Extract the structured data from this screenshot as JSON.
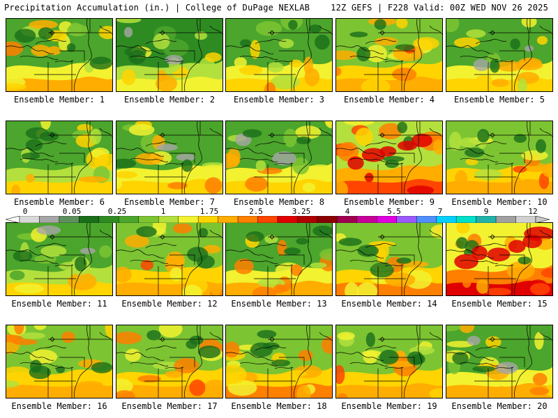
{
  "header": {
    "left": "Precipitation Accumulation (in.) | College of DuPage NEXLAB",
    "right": "12Z GEFS | F228 Valid: 00Z WED NOV 26 2025"
  },
  "colors": {
    "ramp": [
      "#ffffff",
      "#d9d9d9",
      "#a6a6a6",
      "#5f8f5f",
      "#1a6e1a",
      "#2e8b22",
      "#4ca52c",
      "#7cc432",
      "#b3e03c",
      "#f2f230",
      "#ffd400",
      "#ffad00",
      "#ff7f00",
      "#ff4500",
      "#e00000",
      "#b00000",
      "#8b0000",
      "#a0004f",
      "#c8009a",
      "#e000e0",
      "#9b59ff",
      "#4f8fff",
      "#00cfff",
      "#00e0c8",
      "#20b2aa",
      "#a0a0a0",
      "#d0d0d0"
    ],
    "border": "#000000"
  },
  "colorbar": {
    "labels": [
      "0",
      "0.05",
      "0.25",
      "1",
      "1.75",
      "2.5",
      "3.25",
      "4",
      "5.5",
      "7",
      "9",
      "12"
    ]
  },
  "members": [
    {
      "label": "Ensemble Member: 1"
    },
    {
      "label": "Ensemble Member: 2"
    },
    {
      "label": "Ensemble Member: 3"
    },
    {
      "label": "Ensemble Member: 4"
    },
    {
      "label": "Ensemble Member: 5"
    },
    {
      "label": "Ensemble Member: 6"
    },
    {
      "label": "Ensemble Member: 7"
    },
    {
      "label": "Ensemble Member: 8"
    },
    {
      "label": "Ensemble Member: 9"
    },
    {
      "label": "Ensemble Member: 10"
    },
    {
      "label": "Ensemble Member: 11"
    },
    {
      "label": "Ensemble Member: 12"
    },
    {
      "label": "Ensemble Member: 13"
    },
    {
      "label": "Ensemble Member: 14"
    },
    {
      "label": "Ensemble Member: 15"
    },
    {
      "label": "Ensemble Member: 16"
    },
    {
      "label": "Ensemble Member: 17"
    },
    {
      "label": "Ensemble Member: 18"
    },
    {
      "label": "Ensemble Member: 19"
    },
    {
      "label": "Ensemble Member: 20"
    }
  ]
}
